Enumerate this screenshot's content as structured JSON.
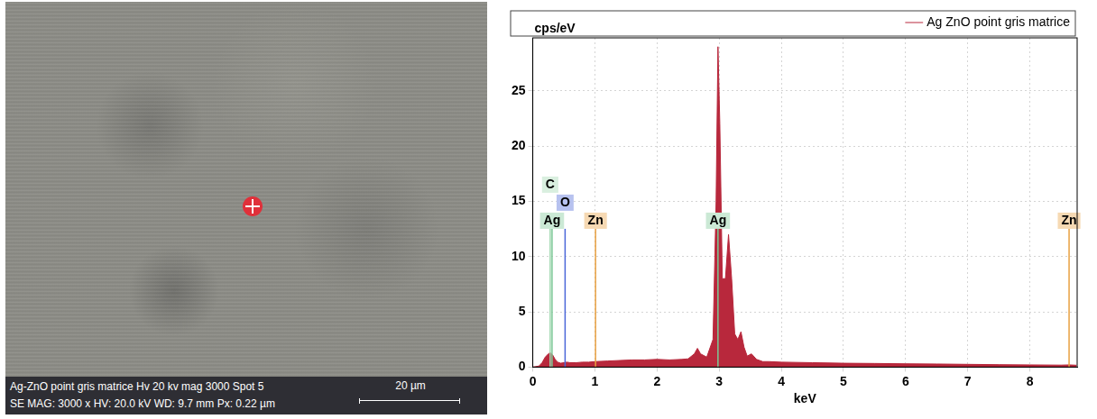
{
  "micrograph": {
    "caption": "Ag-ZnO point gris matrice Hv 20 kv mag 3000 Spot 5",
    "scale_bar": "20 µm",
    "info": "SE MAG: 3000 x HV: 20.0 kV WD: 9.7 mm Px: 0.22 µm"
  },
  "chart_data": {
    "type": "line",
    "y_label": "cps/eV",
    "x_label": "keV",
    "xlim": [
      0,
      8.76
    ],
    "xticks": [
      0,
      1,
      2,
      3,
      4,
      5,
      6,
      7,
      8
    ],
    "ylim": [
      0,
      29.8
    ],
    "yticks": [
      0,
      5,
      10,
      15,
      20,
      25
    ],
    "grid": true,
    "legend": "upper right",
    "x": [
      0.0,
      0.1,
      0.15,
      0.2,
      0.25,
      0.28,
      0.32,
      0.36,
      0.4,
      0.45,
      0.5,
      0.55,
      0.6,
      0.7,
      0.8,
      0.9,
      1.0,
      1.2,
      1.4,
      1.6,
      1.8,
      2.0,
      2.2,
      2.4,
      2.5,
      2.6,
      2.65,
      2.7,
      2.8,
      2.9,
      2.95,
      2.98,
      3.01,
      3.05,
      3.1,
      3.15,
      3.2,
      3.25,
      3.3,
      3.35,
      3.4,
      3.45,
      3.52,
      3.6,
      3.7,
      3.8,
      4.0,
      4.5,
      5.0,
      5.5,
      6.0,
      6.5,
      7.0,
      7.5,
      8.0,
      8.5,
      8.63,
      8.75
    ],
    "series": [
      {
        "name": "Ag ZnO point gris matrice",
        "color": "#b8283c",
        "values": [
          0,
          0.1,
          0.4,
          0.9,
          1.2,
          1.3,
          1.1,
          0.7,
          0.45,
          0.35,
          0.4,
          0.45,
          0.4,
          0.4,
          0.45,
          0.45,
          0.5,
          0.55,
          0.6,
          0.65,
          0.65,
          0.7,
          0.65,
          0.7,
          0.75,
          1.2,
          1.7,
          1.2,
          0.9,
          2.5,
          15,
          29,
          22,
          8,
          8,
          12,
          8,
          3,
          2.5,
          3.2,
          1.8,
          1.0,
          1.2,
          0.7,
          0.5,
          0.5,
          0.45,
          0.4,
          0.35,
          0.33,
          0.3,
          0.28,
          0.25,
          0.22,
          0.2,
          0.18,
          0.2,
          0.17
        ]
      }
    ],
    "annotations": [
      {
        "label": "Ag",
        "x": 0.31,
        "color": "#7cc896"
      },
      {
        "label": "Zn",
        "x": 1.01,
        "color": "#e8a040"
      },
      {
        "label": "Ag",
        "x": 2.98,
        "color": "#7cc896"
      },
      {
        "label": "Zn",
        "x": 8.63,
        "color": "#e8a040"
      },
      {
        "label": "O",
        "x": 0.52,
        "color": "#4a66d8"
      },
      {
        "label": "C",
        "x": 0.28,
        "color": "#a0d8b0"
      }
    ]
  }
}
